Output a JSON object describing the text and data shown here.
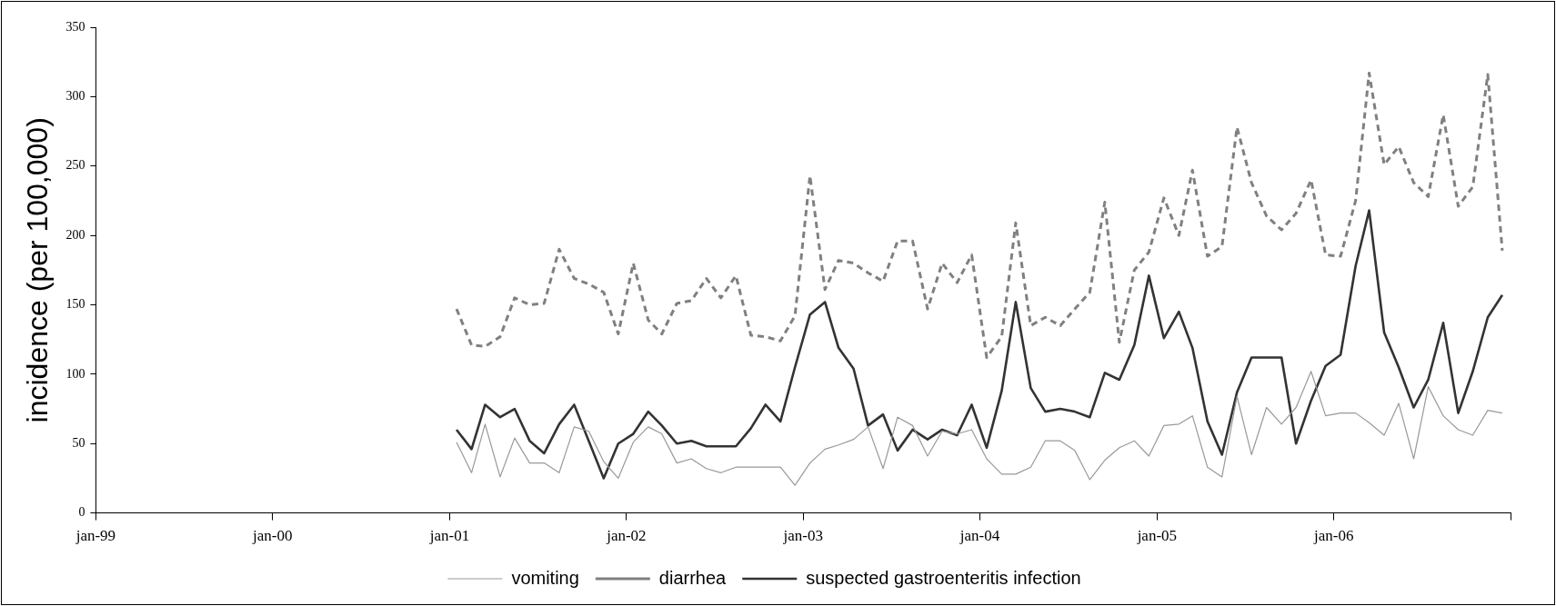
{
  "chart_data": {
    "type": "line",
    "ylabel": "incidence (per 100,000)",
    "x": [
      "2001-01-15",
      "2001-02-15",
      "2001-03-15",
      "2001-04-15",
      "2001-05-15",
      "2001-06-15",
      "2001-07-15",
      "2001-08-15",
      "2001-09-15",
      "2001-10-15",
      "2001-11-15",
      "2001-12-15",
      "2002-01-15",
      "2002-02-15",
      "2002-03-15",
      "2002-04-15",
      "2002-05-15",
      "2002-06-15",
      "2002-07-15",
      "2002-08-15",
      "2002-09-15",
      "2002-10-15",
      "2002-11-15",
      "2002-12-15",
      "2003-01-15",
      "2003-02-15",
      "2003-03-15",
      "2003-04-15",
      "2003-05-15",
      "2003-06-15",
      "2003-07-15",
      "2003-08-15",
      "2003-09-15",
      "2003-10-15",
      "2003-11-15",
      "2003-12-15",
      "2004-01-15",
      "2004-02-15",
      "2004-03-15",
      "2004-04-15",
      "2004-05-15",
      "2004-06-15",
      "2004-07-15",
      "2004-08-15",
      "2004-09-15",
      "2004-10-15",
      "2004-11-15",
      "2004-12-15",
      "2005-01-15",
      "2005-02-15",
      "2005-03-15",
      "2005-04-15",
      "2005-05-15",
      "2005-06-15",
      "2005-07-15",
      "2005-08-15",
      "2005-09-15",
      "2005-10-15",
      "2005-11-15",
      "2005-12-15",
      "2006-01-15",
      "2006-02-15",
      "2006-03-15",
      "2006-04-15",
      "2006-05-15",
      "2006-06-15",
      "2006-07-15",
      "2006-08-15",
      "2006-09-15",
      "2006-10-15",
      "2006-11-15",
      "2006-12-15"
    ],
    "series": [
      {
        "name": "vomiting",
        "color": "#999999",
        "line_style": "solid",
        "values": [
          51,
          29,
          64,
          26,
          54,
          36,
          36,
          29,
          62,
          59,
          37,
          25,
          51,
          62,
          57,
          36,
          39,
          32,
          29,
          33,
          33,
          33,
          33,
          20,
          36,
          46,
          49,
          53,
          62,
          32,
          69,
          63,
          41,
          59,
          57,
          60,
          39,
          28,
          28,
          33,
          52,
          52,
          45,
          24,
          38,
          47,
          52,
          41,
          63,
          64,
          70,
          33,
          26,
          84,
          42,
          76,
          64,
          76,
          102,
          70,
          72,
          72,
          65,
          56,
          79,
          39,
          91,
          70,
          60,
          56,
          74,
          72
        ]
      },
      {
        "name": "diarrhea",
        "color": "#808080",
        "line_style": "dashed",
        "values": [
          147,
          121,
          120,
          127,
          155,
          150,
          151,
          190,
          169,
          165,
          159,
          129,
          180,
          139,
          129,
          151,
          153,
          169,
          155,
          171,
          128,
          127,
          124,
          142,
          243,
          161,
          182,
          180,
          173,
          167,
          196,
          196,
          147,
          180,
          166,
          186,
          112,
          127,
          209,
          135,
          141,
          135,
          147,
          159,
          224,
          123,
          175,
          188,
          227,
          200,
          247,
          185,
          192,
          278,
          238,
          214,
          204,
          216,
          240,
          186,
          185,
          225,
          317,
          251,
          264,
          238,
          228,
          287,
          221,
          235,
          316,
          189
        ]
      },
      {
        "name": "suspected gastroenteritis infection",
        "color": "#333333",
        "line_style": "solid",
        "values": [
          60,
          46,
          78,
          69,
          75,
          52,
          43,
          64,
          78,
          52,
          25,
          50,
          57,
          73,
          63,
          50,
          52,
          48,
          48,
          48,
          61,
          78,
          66,
          105,
          143,
          152,
          119,
          104,
          63,
          71,
          45,
          60,
          53,
          60,
          56,
          78,
          47,
          88,
          152,
          90,
          73,
          75,
          73,
          69,
          101,
          96,
          121,
          171,
          126,
          145,
          119,
          66,
          42,
          87,
          112,
          112,
          112,
          50,
          81,
          106,
          114,
          178,
          218,
          130,
          105,
          76,
          96,
          137,
          72,
          102,
          141,
          157
        ]
      }
    ],
    "xlim": [
      "1999-01",
      "2007-01"
    ],
    "xticks": [
      {
        "value": "1999-01",
        "label": "jan-99"
      },
      {
        "value": "2000-01",
        "label": "jan-00"
      },
      {
        "value": "2001-01",
        "label": "jan-01"
      },
      {
        "value": "2002-01",
        "label": "jan-02"
      },
      {
        "value": "2003-01",
        "label": "jan-03"
      },
      {
        "value": "2004-01",
        "label": "jan-04"
      },
      {
        "value": "2005-01",
        "label": "jan-05"
      },
      {
        "value": "2006-01",
        "label": "jan-06"
      },
      {
        "value": "2007-01",
        "label": null
      }
    ],
    "ylim": [
      0,
      350
    ],
    "yticks": [
      0,
      50,
      100,
      150,
      200,
      250,
      300,
      350
    ],
    "grid": false,
    "legend": "bottom",
    "marker": "none"
  }
}
